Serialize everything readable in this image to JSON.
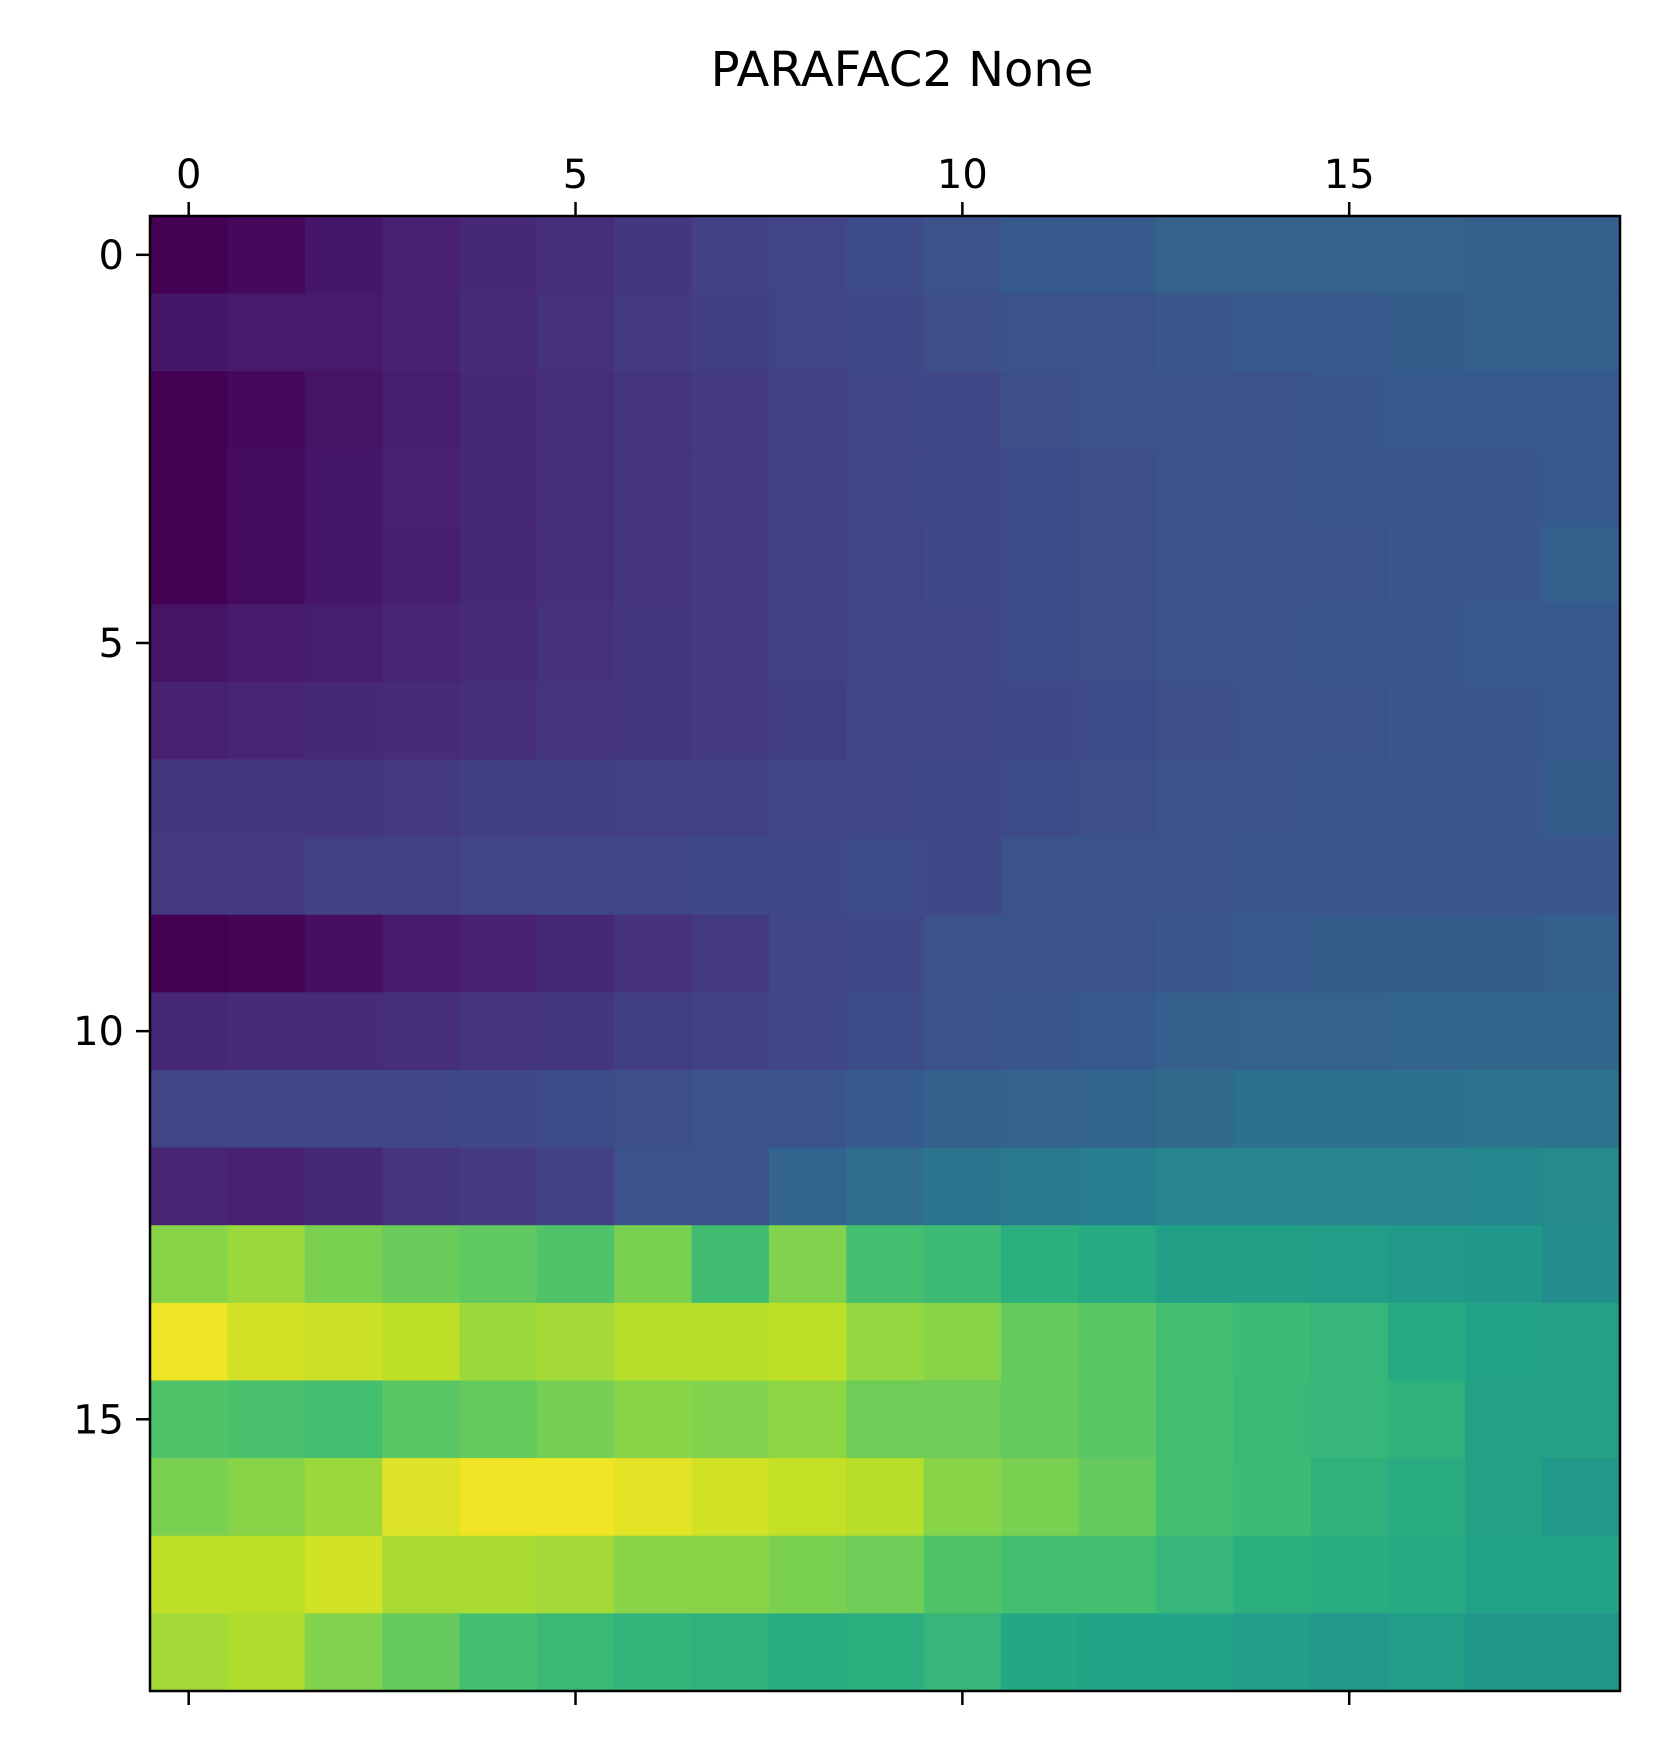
{
  "chart_data": {
    "type": "heatmap",
    "title": "PARAFAC2 None",
    "xlabel": "",
    "ylabel": "",
    "colormap": "viridis",
    "x_range": [
      -0.5,
      18.5
    ],
    "y_range": [
      -0.5,
      18.5
    ],
    "x_ticks": [
      0,
      5,
      10,
      15
    ],
    "y_ticks": [
      0,
      5,
      10,
      15
    ],
    "x_tick_labels": [
      "0",
      "5",
      "10",
      "15"
    ],
    "y_tick_labels": [
      "0",
      "5",
      "10",
      "15"
    ],
    "x_axis_position": "top",
    "grid": false,
    "rows": [
      [
        0.0,
        0.02,
        0.06,
        0.09,
        0.11,
        0.13,
        0.16,
        0.19,
        0.2,
        0.23,
        0.25,
        0.28,
        0.28,
        0.31,
        0.31,
        0.31,
        0.31,
        0.3,
        0.3
      ],
      [
        0.06,
        0.07,
        0.07,
        0.09,
        0.12,
        0.14,
        0.17,
        0.18,
        0.2,
        0.22,
        0.24,
        0.25,
        0.25,
        0.27,
        0.28,
        0.28,
        0.29,
        0.3,
        0.3
      ],
      [
        0.0,
        0.02,
        0.05,
        0.08,
        0.11,
        0.13,
        0.15,
        0.17,
        0.19,
        0.21,
        0.22,
        0.24,
        0.25,
        0.26,
        0.26,
        0.27,
        0.28,
        0.28,
        0.28
      ],
      [
        0.0,
        0.03,
        0.06,
        0.09,
        0.11,
        0.13,
        0.15,
        0.17,
        0.19,
        0.21,
        0.22,
        0.23,
        0.24,
        0.25,
        0.26,
        0.27,
        0.27,
        0.27,
        0.28
      ],
      [
        0.0,
        0.03,
        0.06,
        0.08,
        0.11,
        0.13,
        0.15,
        0.17,
        0.19,
        0.2,
        0.22,
        0.23,
        0.24,
        0.25,
        0.25,
        0.26,
        0.27,
        0.27,
        0.3
      ],
      [
        0.05,
        0.07,
        0.08,
        0.1,
        0.12,
        0.14,
        0.16,
        0.17,
        0.19,
        0.2,
        0.21,
        0.23,
        0.24,
        0.25,
        0.26,
        0.27,
        0.27,
        0.28,
        0.28
      ],
      [
        0.09,
        0.1,
        0.11,
        0.12,
        0.13,
        0.15,
        0.16,
        0.17,
        0.18,
        0.2,
        0.21,
        0.22,
        0.23,
        0.24,
        0.25,
        0.26,
        0.27,
        0.27,
        0.28
      ],
      [
        0.16,
        0.16,
        0.16,
        0.17,
        0.18,
        0.18,
        0.19,
        0.19,
        0.2,
        0.21,
        0.22,
        0.23,
        0.24,
        0.25,
        0.26,
        0.27,
        0.27,
        0.27,
        0.29
      ],
      [
        0.17,
        0.17,
        0.19,
        0.19,
        0.2,
        0.21,
        0.21,
        0.22,
        0.22,
        0.23,
        0.22,
        0.25,
        0.26,
        0.26,
        0.27,
        0.27,
        0.27,
        0.27,
        0.27
      ],
      [
        0.0,
        0.01,
        0.04,
        0.07,
        0.09,
        0.11,
        0.14,
        0.17,
        0.21,
        0.22,
        0.25,
        0.26,
        0.26,
        0.27,
        0.28,
        0.29,
        0.29,
        0.29,
        0.3
      ],
      [
        0.11,
        0.12,
        0.12,
        0.13,
        0.15,
        0.16,
        0.18,
        0.19,
        0.21,
        0.23,
        0.25,
        0.27,
        0.28,
        0.3,
        0.31,
        0.31,
        0.32,
        0.33,
        0.33
      ],
      [
        0.2,
        0.21,
        0.21,
        0.21,
        0.22,
        0.23,
        0.24,
        0.25,
        0.26,
        0.28,
        0.3,
        0.31,
        0.32,
        0.34,
        0.37,
        0.37,
        0.37,
        0.38,
        0.38
      ],
      [
        0.1,
        0.09,
        0.11,
        0.15,
        0.17,
        0.19,
        0.25,
        0.26,
        0.32,
        0.35,
        0.39,
        0.4,
        0.42,
        0.45,
        0.45,
        0.45,
        0.45,
        0.46,
        0.47
      ],
      [
        0.82,
        0.85,
        0.8,
        0.77,
        0.75,
        0.72,
        0.8,
        0.69,
        0.81,
        0.7,
        0.68,
        0.63,
        0.61,
        0.56,
        0.56,
        0.55,
        0.54,
        0.52,
        0.48
      ],
      [
        0.98,
        0.93,
        0.92,
        0.9,
        0.85,
        0.86,
        0.89,
        0.89,
        0.9,
        0.84,
        0.82,
        0.76,
        0.74,
        0.7,
        0.68,
        0.66,
        0.61,
        0.58,
        0.57
      ],
      [
        0.72,
        0.71,
        0.7,
        0.74,
        0.76,
        0.79,
        0.82,
        0.81,
        0.83,
        0.78,
        0.78,
        0.76,
        0.74,
        0.7,
        0.67,
        0.66,
        0.64,
        0.57,
        0.57
      ],
      [
        0.8,
        0.82,
        0.85,
        0.95,
        0.98,
        0.98,
        0.96,
        0.93,
        0.91,
        0.89,
        0.82,
        0.8,
        0.76,
        0.7,
        0.68,
        0.64,
        0.62,
        0.57,
        0.53
      ],
      [
        0.9,
        0.9,
        0.93,
        0.87,
        0.87,
        0.86,
        0.82,
        0.82,
        0.8,
        0.78,
        0.72,
        0.7,
        0.7,
        0.66,
        0.63,
        0.62,
        0.61,
        0.58,
        0.58
      ],
      [
        0.86,
        0.88,
        0.81,
        0.76,
        0.7,
        0.67,
        0.65,
        0.64,
        0.62,
        0.63,
        0.66,
        0.6,
        0.58,
        0.58,
        0.55,
        0.53,
        0.55,
        0.52,
        0.52
      ]
    ]
  }
}
